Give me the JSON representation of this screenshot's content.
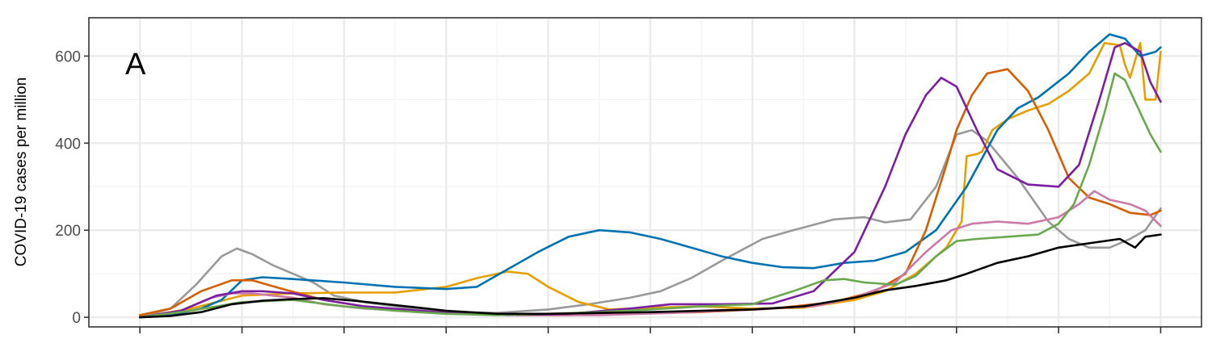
{
  "chart_data": {
    "type": "line",
    "title": "",
    "panel_label": "A",
    "xlabel": "",
    "ylabel": "COVID-19 cases per million",
    "yticks": [
      0,
      200,
      400,
      600
    ],
    "ylim": [
      -22,
      688
    ],
    "xlim": [
      -0.5,
      10.4
    ],
    "x_tick_positions": [
      0,
      1,
      2,
      3,
      4,
      5,
      6,
      7,
      8,
      9,
      10
    ],
    "grid": true,
    "series": [
      {
        "color": "#999999",
        "values": [
          [
            0,
            0
          ],
          [
            0.3,
            20
          ],
          [
            0.55,
            75
          ],
          [
            0.8,
            140
          ],
          [
            0.95,
            158
          ],
          [
            1.1,
            145
          ],
          [
            1.3,
            120
          ],
          [
            1.5,
            100
          ],
          [
            1.7,
            80
          ],
          [
            1.9,
            50
          ],
          [
            2.2,
            35
          ],
          [
            2.6,
            22
          ],
          [
            3.0,
            12
          ],
          [
            3.5,
            10
          ],
          [
            4.0,
            18
          ],
          [
            4.4,
            30
          ],
          [
            4.8,
            45
          ],
          [
            5.1,
            60
          ],
          [
            5.4,
            90
          ],
          [
            5.7,
            130
          ],
          [
            6.1,
            180
          ],
          [
            6.4,
            200
          ],
          [
            6.8,
            225
          ],
          [
            7.1,
            230
          ],
          [
            7.3,
            218
          ],
          [
            7.55,
            225
          ],
          [
            7.8,
            300
          ],
          [
            8.0,
            420
          ],
          [
            8.15,
            430
          ],
          [
            8.3,
            405
          ],
          [
            8.6,
            320
          ],
          [
            8.9,
            220
          ],
          [
            9.1,
            180
          ],
          [
            9.3,
            160
          ],
          [
            9.5,
            160
          ],
          [
            9.7,
            180
          ],
          [
            9.85,
            200
          ],
          [
            10.0,
            250
          ]
        ]
      },
      {
        "color": "#E69F00",
        "values": [
          [
            0,
            0
          ],
          [
            0.5,
            20
          ],
          [
            1,
            50
          ],
          [
            1.5,
            55
          ],
          [
            2,
            57
          ],
          [
            2.5,
            57
          ],
          [
            3,
            70
          ],
          [
            3.3,
            90
          ],
          [
            3.6,
            105
          ],
          [
            3.8,
            100
          ],
          [
            4,
            70
          ],
          [
            4.3,
            35
          ],
          [
            4.6,
            18
          ],
          [
            5,
            22
          ],
          [
            5.5,
            25
          ],
          [
            6,
            20
          ],
          [
            6.5,
            22
          ],
          [
            7,
            40
          ],
          [
            7.3,
            60
          ],
          [
            7.6,
            100
          ],
          [
            7.9,
            160
          ],
          [
            8.05,
            220
          ],
          [
            8.1,
            370
          ],
          [
            8.2,
            375
          ],
          [
            8.25,
            380
          ],
          [
            8.35,
            430
          ],
          [
            8.5,
            455
          ],
          [
            8.7,
            475
          ],
          [
            8.9,
            490
          ],
          [
            9.1,
            520
          ],
          [
            9.3,
            560
          ],
          [
            9.45,
            630
          ],
          [
            9.6,
            625
          ],
          [
            9.65,
            580
          ],
          [
            9.7,
            550
          ],
          [
            9.8,
            630
          ],
          [
            9.85,
            500
          ],
          [
            9.95,
            500
          ],
          [
            10,
            610
          ]
        ]
      },
      {
        "color": "#0072B2",
        "values": [
          [
            0,
            0
          ],
          [
            0.3,
            5
          ],
          [
            0.6,
            20
          ],
          [
            0.8,
            40
          ],
          [
            1.0,
            85
          ],
          [
            1.2,
            92
          ],
          [
            1.5,
            88
          ],
          [
            2.0,
            80
          ],
          [
            2.5,
            70
          ],
          [
            3.0,
            65
          ],
          [
            3.3,
            70
          ],
          [
            3.6,
            110
          ],
          [
            3.9,
            150
          ],
          [
            4.2,
            185
          ],
          [
            4.5,
            200
          ],
          [
            4.8,
            195
          ],
          [
            5.1,
            180
          ],
          [
            5.4,
            160
          ],
          [
            5.7,
            140
          ],
          [
            6.0,
            125
          ],
          [
            6.3,
            115
          ],
          [
            6.6,
            113
          ],
          [
            6.9,
            125
          ],
          [
            7.2,
            130
          ],
          [
            7.5,
            150
          ],
          [
            7.8,
            200
          ],
          [
            8.1,
            300
          ],
          [
            8.4,
            430
          ],
          [
            8.6,
            480
          ],
          [
            8.8,
            505
          ],
          [
            9.1,
            560
          ],
          [
            9.3,
            610
          ],
          [
            9.5,
            650
          ],
          [
            9.65,
            640
          ],
          [
            9.8,
            600
          ],
          [
            9.95,
            610
          ],
          [
            10,
            620
          ]
        ]
      },
      {
        "color": "#D55E00",
        "values": [
          [
            0,
            5
          ],
          [
            0.3,
            20
          ],
          [
            0.6,
            60
          ],
          [
            0.9,
            85
          ],
          [
            1.1,
            85
          ],
          [
            1.4,
            65
          ],
          [
            1.8,
            40
          ],
          [
            2.2,
            25
          ],
          [
            2.7,
            15
          ],
          [
            3.2,
            8
          ],
          [
            3.7,
            5
          ],
          [
            4.2,
            5
          ],
          [
            4.8,
            8
          ],
          [
            5.5,
            12
          ],
          [
            6.2,
            20
          ],
          [
            6.8,
            35
          ],
          [
            7.2,
            60
          ],
          [
            7.5,
            100
          ],
          [
            7.7,
            200
          ],
          [
            7.9,
            350
          ],
          [
            8.0,
            430
          ],
          [
            8.15,
            510
          ],
          [
            8.3,
            560
          ],
          [
            8.5,
            570
          ],
          [
            8.7,
            520
          ],
          [
            8.9,
            430
          ],
          [
            9.1,
            320
          ],
          [
            9.3,
            275
          ],
          [
            9.5,
            260
          ],
          [
            9.7,
            240
          ],
          [
            9.9,
            235
          ],
          [
            10,
            245
          ]
        ]
      },
      {
        "color": "#CC79A7",
        "values": [
          [
            0,
            0
          ],
          [
            0.4,
            15
          ],
          [
            0.7,
            45
          ],
          [
            0.9,
            55
          ],
          [
            1.1,
            55
          ],
          [
            1.5,
            45
          ],
          [
            1.8,
            30
          ],
          [
            2.2,
            20
          ],
          [
            3,
            10
          ],
          [
            3.8,
            5
          ],
          [
            4.5,
            5
          ],
          [
            5.2,
            10
          ],
          [
            6,
            18
          ],
          [
            6.6,
            25
          ],
          [
            7.0,
            45
          ],
          [
            7.4,
            80
          ],
          [
            7.7,
            150
          ],
          [
            7.95,
            200
          ],
          [
            8.15,
            215
          ],
          [
            8.4,
            220
          ],
          [
            8.7,
            215
          ],
          [
            9.0,
            230
          ],
          [
            9.2,
            260
          ],
          [
            9.35,
            290
          ],
          [
            9.5,
            270
          ],
          [
            9.7,
            260
          ],
          [
            9.85,
            245
          ],
          [
            10,
            210
          ]
        ]
      },
      {
        "color": "#7B1FA2",
        "values": [
          [
            0,
            0
          ],
          [
            0.4,
            15
          ],
          [
            0.75,
            50
          ],
          [
            1.0,
            60
          ],
          [
            1.2,
            60
          ],
          [
            1.5,
            55
          ],
          [
            1.8,
            40
          ],
          [
            2.2,
            25
          ],
          [
            3,
            10
          ],
          [
            3.6,
            5
          ],
          [
            4.2,
            8
          ],
          [
            4.8,
            20
          ],
          [
            5.2,
            30
          ],
          [
            5.7,
            30
          ],
          [
            6.2,
            32
          ],
          [
            6.6,
            60
          ],
          [
            7.0,
            150
          ],
          [
            7.3,
            300
          ],
          [
            7.5,
            420
          ],
          [
            7.7,
            510
          ],
          [
            7.85,
            550
          ],
          [
            8.0,
            530
          ],
          [
            8.2,
            430
          ],
          [
            8.4,
            340
          ],
          [
            8.7,
            305
          ],
          [
            9.0,
            300
          ],
          [
            9.2,
            350
          ],
          [
            9.4,
            500
          ],
          [
            9.55,
            620
          ],
          [
            9.65,
            630
          ],
          [
            9.8,
            610
          ],
          [
            9.9,
            540
          ],
          [
            10,
            495
          ]
        ]
      },
      {
        "color": "#6AA84F",
        "values": [
          [
            0,
            0
          ],
          [
            0.5,
            15
          ],
          [
            1.0,
            35
          ],
          [
            1.5,
            40
          ],
          [
            2,
            25
          ],
          [
            2.5,
            15
          ],
          [
            3,
            8
          ],
          [
            3.5,
            5
          ],
          [
            4,
            8
          ],
          [
            4.5,
            12
          ],
          [
            5,
            18
          ],
          [
            5.5,
            25
          ],
          [
            6,
            30
          ],
          [
            6.4,
            60
          ],
          [
            6.7,
            85
          ],
          [
            6.9,
            88
          ],
          [
            7.1,
            80
          ],
          [
            7.4,
            75
          ],
          [
            7.6,
            95
          ],
          [
            7.8,
            140
          ],
          [
            8.0,
            175
          ],
          [
            8.2,
            180
          ],
          [
            8.5,
            185
          ],
          [
            8.8,
            190
          ],
          [
            9.0,
            215
          ],
          [
            9.15,
            260
          ],
          [
            9.3,
            350
          ],
          [
            9.45,
            470
          ],
          [
            9.55,
            560
          ],
          [
            9.65,
            545
          ],
          [
            9.8,
            470
          ],
          [
            9.9,
            420
          ],
          [
            10,
            380
          ]
        ]
      },
      {
        "color": "#000000",
        "values": [
          [
            0,
            0
          ],
          [
            0.3,
            3
          ],
          [
            0.6,
            12
          ],
          [
            0.9,
            30
          ],
          [
            1.2,
            38
          ],
          [
            1.5,
            42
          ],
          [
            1.8,
            44
          ],
          [
            2.1,
            38
          ],
          [
            2.5,
            28
          ],
          [
            3.0,
            15
          ],
          [
            3.5,
            8
          ],
          [
            4.0,
            8
          ],
          [
            4.5,
            10
          ],
          [
            5.0,
            12
          ],
          [
            5.5,
            15
          ],
          [
            6.0,
            18
          ],
          [
            6.5,
            25
          ],
          [
            7.0,
            45
          ],
          [
            7.3,
            62
          ],
          [
            7.6,
            72
          ],
          [
            7.9,
            85
          ],
          [
            8.1,
            100
          ],
          [
            8.4,
            125
          ],
          [
            8.7,
            140
          ],
          [
            9.0,
            160
          ],
          [
            9.3,
            170
          ],
          [
            9.6,
            180
          ],
          [
            9.75,
            160
          ],
          [
            9.85,
            185
          ],
          [
            10,
            190
          ]
        ]
      }
    ]
  }
}
